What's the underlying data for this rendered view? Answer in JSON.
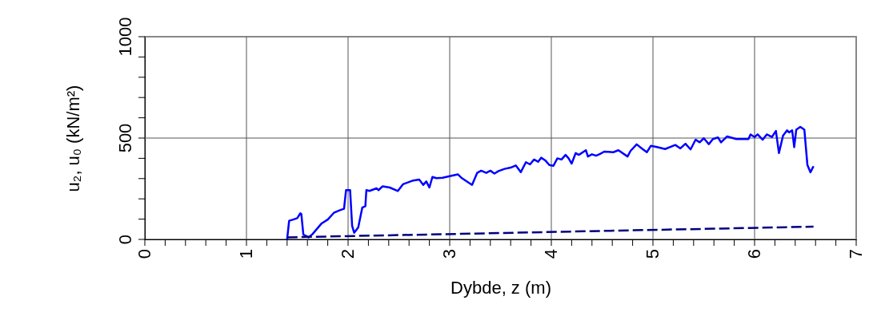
{
  "chart_data": {
    "type": "line",
    "xlabel": "Dybde, z (m)",
    "ylabel": "u₂, u₀ (kN/m²)",
    "xlim": [
      0,
      7
    ],
    "ylim": [
      0,
      1000
    ],
    "xticks": [
      0,
      {
        "value": 0.2,
        "label": null
      },
      {
        "value": 0.4,
        "label": null
      },
      {
        "value": 0.6,
        "label": null
      },
      {
        "value": 0.8,
        "label": null
      },
      1,
      {
        "value": 1.2,
        "label": null
      },
      {
        "value": 1.4,
        "label": null
      },
      {
        "value": 1.6,
        "label": null
      },
      {
        "value": 1.8,
        "label": null
      },
      2,
      {
        "value": 2.2,
        "label": null
      },
      {
        "value": 2.4,
        "label": null
      },
      {
        "value": 2.6,
        "label": null
      },
      {
        "value": 2.8,
        "label": null
      },
      3,
      {
        "value": 3.2,
        "label": null
      },
      {
        "value": 3.4,
        "label": null
      },
      {
        "value": 3.6,
        "label": null
      },
      {
        "value": 3.8,
        "label": null
      },
      4,
      {
        "value": 4.2,
        "label": null
      },
      {
        "value": 4.4,
        "label": null
      },
      {
        "value": 4.6,
        "label": null
      },
      {
        "value": 4.8,
        "label": null
      },
      5,
      {
        "value": 5.2,
        "label": null
      },
      {
        "value": 5.4,
        "label": null
      },
      {
        "value": 5.6,
        "label": null
      },
      {
        "value": 5.8,
        "label": null
      },
      6,
      {
        "value": 6.2,
        "label": null
      },
      {
        "value": 6.4,
        "label": null
      },
      {
        "value": 6.6,
        "label": null
      },
      {
        "value": 6.8,
        "label": null
      },
      7
    ],
    "yticks": [
      0,
      {
        "value": 100,
        "label": null
      },
      {
        "value": 200,
        "label": null
      },
      {
        "value": 300,
        "label": null
      },
      {
        "value": 400,
        "label": null
      },
      500,
      {
        "value": 600,
        "label": null
      },
      {
        "value": 700,
        "label": null
      },
      {
        "value": 800,
        "label": null
      },
      {
        "value": 900,
        "label": null
      },
      1000
    ],
    "grid": true,
    "marker": "none",
    "series": [
      {
        "color": "#0000ff",
        "line_style": "solid",
        "x": [
          1.4,
          1.42,
          1.46,
          1.5,
          1.53,
          1.54,
          1.56,
          1.61,
          1.65,
          1.74,
          1.8,
          1.86,
          1.92,
          1.96,
          1.98,
          2.02,
          2.04,
          2.06,
          2.1,
          2.14,
          2.17,
          2.18,
          2.21,
          2.28,
          2.3,
          2.34,
          2.41,
          2.49,
          2.54,
          2.63,
          2.7,
          2.74,
          2.77,
          2.8,
          2.83,
          2.87,
          2.93,
          3.08,
          3.12,
          3.22,
          3.27,
          3.31,
          3.36,
          3.4,
          3.44,
          3.48,
          3.54,
          3.6,
          3.65,
          3.7,
          3.75,
          3.79,
          3.83,
          3.87,
          3.9,
          3.94,
          3.98,
          4.02,
          4.06,
          4.1,
          4.14,
          4.17,
          4.2,
          4.24,
          4.27,
          4.34,
          4.36,
          4.4,
          4.44,
          4.48,
          4.52,
          4.61,
          4.66,
          4.75,
          4.78,
          4.84,
          4.89,
          4.94,
          4.98,
          5.03,
          5.12,
          5.22,
          5.27,
          5.32,
          5.37,
          5.42,
          5.46,
          5.5,
          5.55,
          5.59,
          5.64,
          5.67,
          5.73,
          5.82,
          5.94,
          5.96,
          6.0,
          6.03,
          6.08,
          6.12,
          6.17,
          6.21,
          6.24,
          6.28,
          6.32,
          6.34,
          6.37,
          6.39,
          6.41,
          6.45,
          6.49,
          6.52,
          6.55,
          6.58
        ],
        "values": [
          0,
          92,
          98,
          105,
          129,
          125,
          24,
          10,
          26,
          79,
          98,
          131,
          144,
          151,
          243,
          243,
          66,
          33,
          59,
          157,
          164,
          243,
          239,
          252,
          243,
          262,
          256,
          239,
          272,
          289,
          295,
          269,
          286,
          256,
          308,
          302,
          304,
          321,
          302,
          269,
          328,
          339,
          328,
          339,
          325,
          337,
          348,
          354,
          365,
          332,
          381,
          370,
          394,
          383,
          403,
          390,
          367,
          363,
          400,
          394,
          417,
          400,
          374,
          426,
          417,
          440,
          409,
          420,
          413,
          422,
          433,
          430,
          440,
          409,
          437,
          469,
          449,
          430,
          462,
          457,
          446,
          466,
          449,
          472,
          444,
          492,
          479,
          499,
          470,
          495,
          503,
          479,
          508,
          495,
          495,
          518,
          505,
          518,
          492,
          518,
          505,
          535,
          426,
          512,
          538,
          528,
          538,
          455,
          541,
          555,
          541,
          367,
          331,
          361
        ]
      },
      {
        "color": "#000080",
        "line_style": "dashed",
        "x": [
          1.4,
          6.58
        ],
        "values": [
          10,
          63
        ]
      }
    ]
  }
}
